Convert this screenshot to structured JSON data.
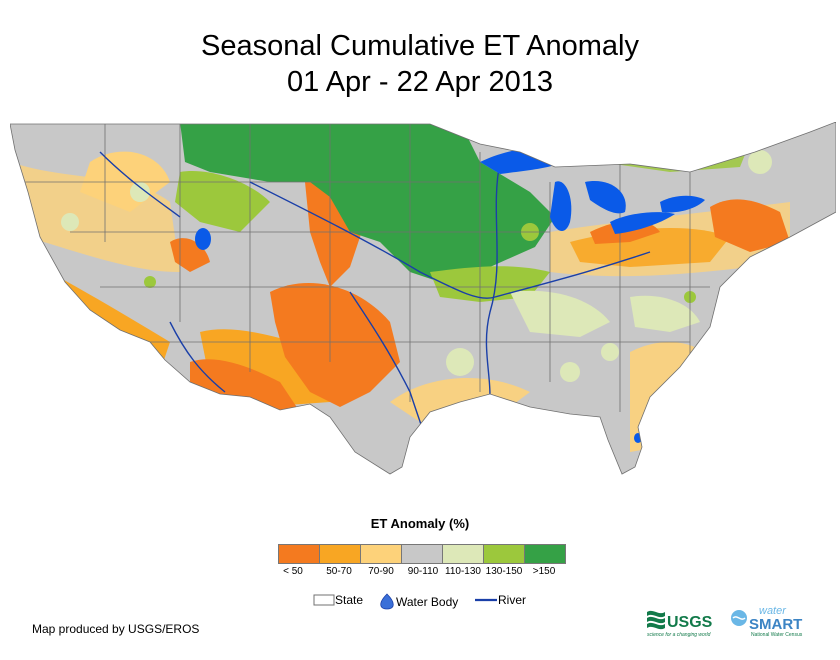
{
  "title": {
    "line1": "Seasonal Cumulative ET Anomaly",
    "line2": "01 Apr - 22 Apr 2013"
  },
  "legend": {
    "title": "ET Anomaly (%)",
    "bins": [
      {
        "label": "< 50",
        "color": "#f47a1f"
      },
      {
        "label": "50-70",
        "color": "#f8a623"
      },
      {
        "label": "70-90",
        "color": "#fdd27a"
      },
      {
        "label": "90-110",
        "color": "#c8c8c8"
      },
      {
        "label": "110-130",
        "color": "#dde8b8"
      },
      {
        "label": "130-150",
        "color": "#9cc83c"
      },
      {
        "label": ">150",
        "color": "#35a146"
      }
    ]
  },
  "reference": {
    "state": "State",
    "water_body": "Water Body",
    "river": "River"
  },
  "credit": "Map produced by USGS/EROS",
  "logos": {
    "usgs": "USGS",
    "usgs_tagline": "science for a changing world",
    "water": "water",
    "smart": "SMART",
    "smart_tagline": "National Water Census"
  },
  "colors": {
    "water": "#0a5ae8",
    "river": "#1a3fa8",
    "state_border": "#707070"
  }
}
